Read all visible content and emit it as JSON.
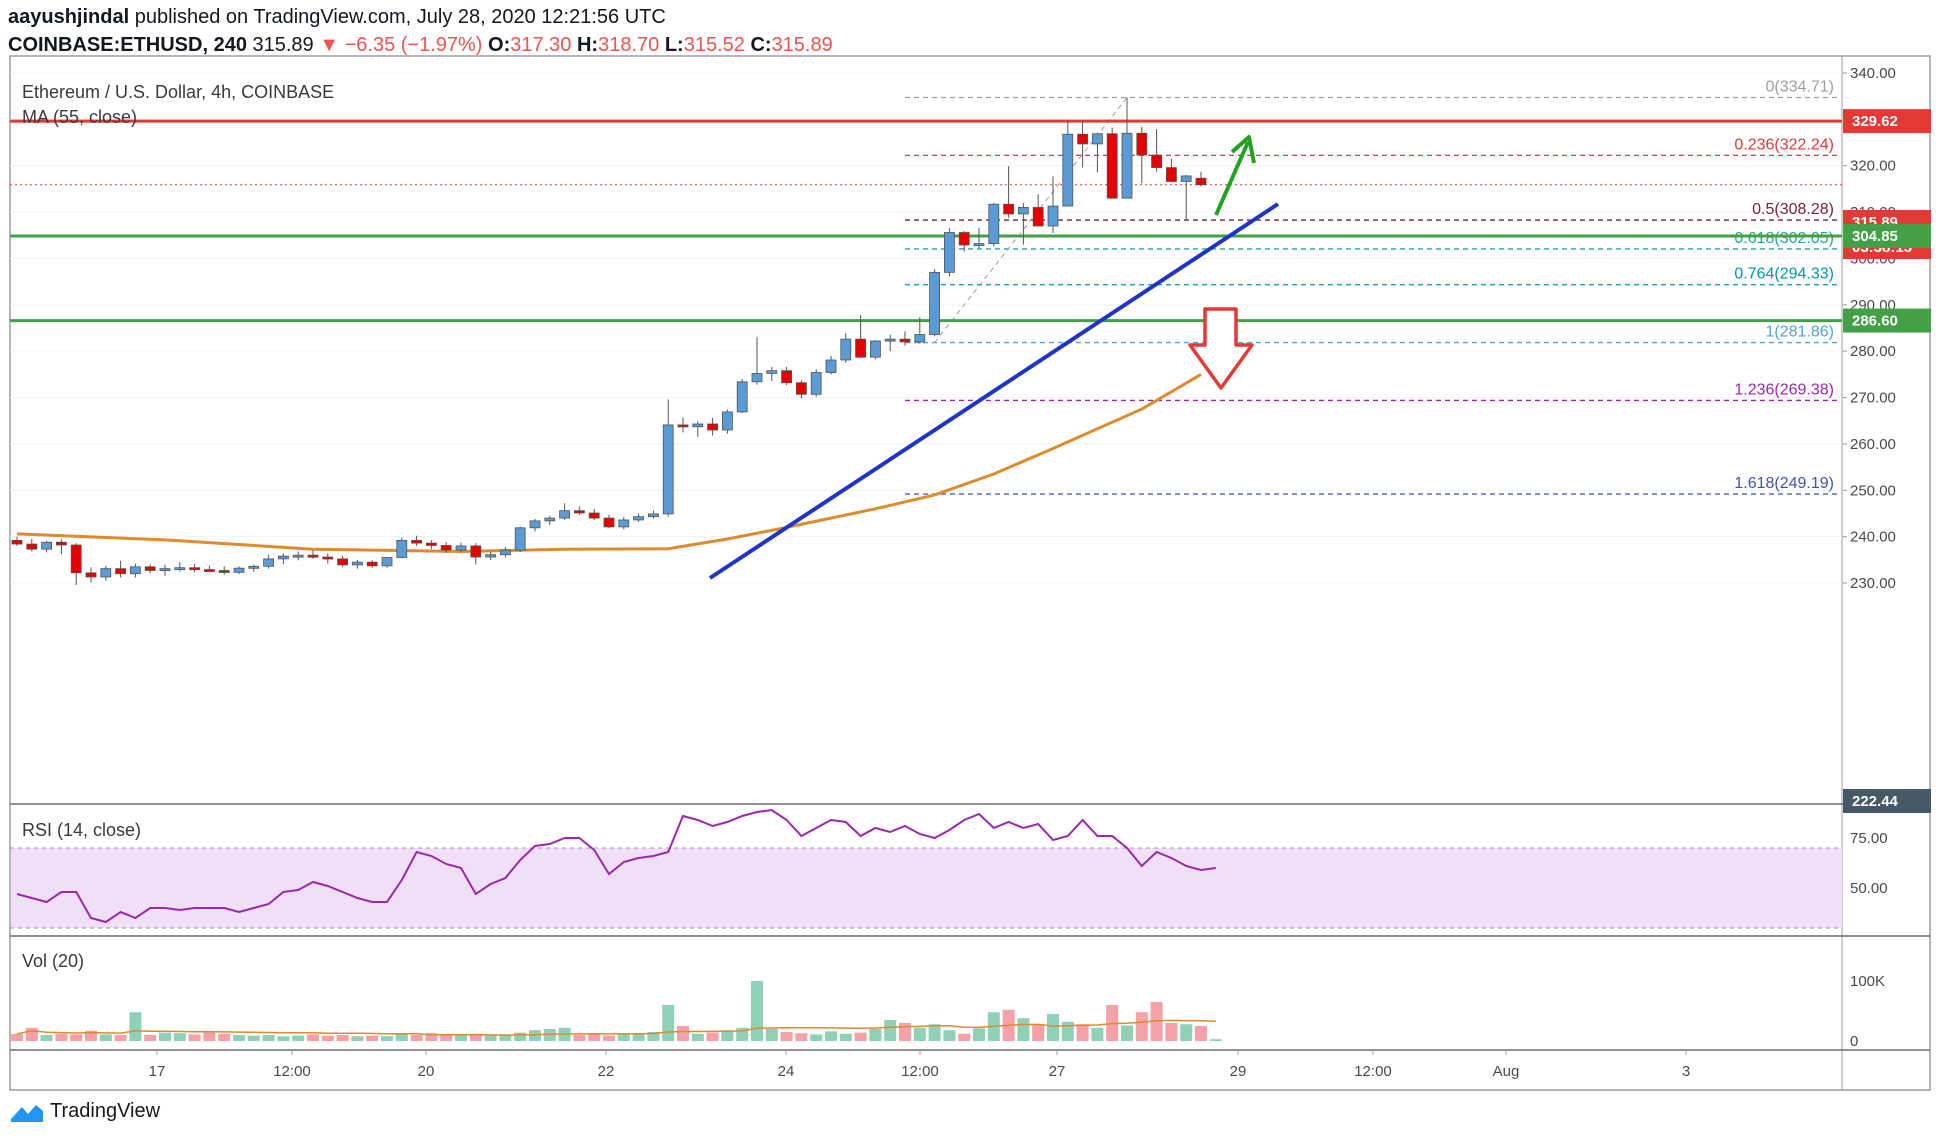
{
  "header": {
    "author": "aayushjindal",
    "published": "published on TradingView.com, July 28, 2020 12:21:56 UTC",
    "symbol": "COINBASE:ETHUSD, 240",
    "last": "315.89",
    "change": "−6.35 (−1.97%)",
    "o_label": "O:",
    "o": "317.30",
    "h_label": "H:",
    "h": "318.70",
    "l_label": "L:",
    "l": "315.52",
    "c_label": "C:",
    "c": "315.89"
  },
  "main_pane": {
    "title": "Ethereum / U.S. Dollar, 4h, COINBASE",
    "indicator": "MA (55, close)"
  },
  "rsi_pane": {
    "title": "RSI (14, close)",
    "ticks": [
      "75.00",
      "50.00"
    ]
  },
  "vol_pane": {
    "title": "Vol (20)",
    "ticks": [
      "100K",
      "0"
    ]
  },
  "price_axis": {
    "ticks": [
      "340.00",
      "320.00",
      "310.00",
      "300.00",
      "290.00",
      "280.00",
      "270.00",
      "260.00",
      "250.00",
      "240.00",
      "230.00"
    ]
  },
  "price_tags": [
    {
      "text": "329.62",
      "color": "#e53935"
    },
    {
      "text": "315.89",
      "color": "#e53935"
    },
    {
      "text": "03:38:13",
      "color": "#e53935"
    },
    {
      "text": "304.85",
      "color": "#43a047"
    },
    {
      "text": "286.60",
      "color": "#43a047"
    },
    {
      "text": "222.44",
      "color": "#455a64"
    }
  ],
  "fib_levels": [
    {
      "label": "0(334.71)",
      "color": "#9e9e9e"
    },
    {
      "label": "0.236(322.24)",
      "color": "#e53935"
    },
    {
      "label": "0.5(308.28)",
      "color": "#7b1f3a"
    },
    {
      "label": "0.618(302.05)",
      "color": "#26a69a"
    },
    {
      "label": "0.764(294.33)",
      "color": "#0097a7"
    },
    {
      "label": "1(281.86)",
      "color": "#4fa3e0"
    },
    {
      "label": "1.236(269.38)",
      "color": "#9c27b0"
    },
    {
      "label": "1.618(249.19)",
      "color": "#3f51b5"
    }
  ],
  "time_axis": {
    "labels": [
      "17",
      "12:00",
      "20",
      "22",
      "24",
      "12:00",
      "27",
      "29",
      "12:00",
      "Aug",
      "3"
    ]
  },
  "footer": {
    "brand": "TradingView"
  },
  "colors": {
    "up": "#5b9bd5",
    "down": "#e60000",
    "resistance": "#e53935",
    "support": "#43a047",
    "trendline": "#1f35c9",
    "ma": "#e08a2e",
    "rsi": "#9c27b0",
    "rsi_band": "#efe0f8",
    "vol_up": "#8fd1b7",
    "vol_down": "#f4a2a7",
    "arrow_up": "#21a321",
    "arrow_down": "#e53935"
  },
  "chart_data": {
    "type": "candlestick",
    "ylim": [
      226,
      342
    ],
    "horizontal_levels": [
      329.62,
      304.85,
      286.6
    ],
    "current_price": 315.89,
    "candles": [
      {
        "o": 239.2,
        "h": 240.0,
        "l": 238.0,
        "c": 238.4
      },
      {
        "o": 238.4,
        "h": 239.5,
        "l": 236.8,
        "c": 237.3
      },
      {
        "o": 237.3,
        "h": 239.1,
        "l": 236.6,
        "c": 238.8
      },
      {
        "o": 238.8,
        "h": 239.4,
        "l": 236.2,
        "c": 238.2
      },
      {
        "o": 238.2,
        "h": 238.6,
        "l": 229.6,
        "c": 232.2
      },
      {
        "o": 232.2,
        "h": 233.4,
        "l": 230.1,
        "c": 231.3
      },
      {
        "o": 231.3,
        "h": 233.7,
        "l": 230.5,
        "c": 233.1
      },
      {
        "o": 233.1,
        "h": 234.8,
        "l": 231.2,
        "c": 232.0
      },
      {
        "o": 232.0,
        "h": 234.2,
        "l": 231.2,
        "c": 233.5
      },
      {
        "o": 233.5,
        "h": 234.0,
        "l": 232.1,
        "c": 232.7
      },
      {
        "o": 232.7,
        "h": 233.9,
        "l": 231.6,
        "c": 233.1
      },
      {
        "o": 233.1,
        "h": 234.5,
        "l": 232.5,
        "c": 233.3
      },
      {
        "o": 233.3,
        "h": 234.1,
        "l": 232.3,
        "c": 232.9
      },
      {
        "o": 232.9,
        "h": 233.8,
        "l": 232.4,
        "c": 232.7
      },
      {
        "o": 232.7,
        "h": 233.6,
        "l": 231.8,
        "c": 232.3
      },
      {
        "o": 232.3,
        "h": 233.6,
        "l": 231.9,
        "c": 233.2
      },
      {
        "o": 233.2,
        "h": 234.0,
        "l": 232.4,
        "c": 233.6
      },
      {
        "o": 233.6,
        "h": 236.1,
        "l": 233.1,
        "c": 235.2
      },
      {
        "o": 235.2,
        "h": 236.4,
        "l": 234.1,
        "c": 235.8
      },
      {
        "o": 235.8,
        "h": 236.8,
        "l": 234.9,
        "c": 236.0
      },
      {
        "o": 236.0,
        "h": 237.0,
        "l": 235.2,
        "c": 235.6
      },
      {
        "o": 235.6,
        "h": 236.4,
        "l": 234.2,
        "c": 235.2
      },
      {
        "o": 235.2,
        "h": 235.9,
        "l": 233.4,
        "c": 233.9
      },
      {
        "o": 233.9,
        "h": 235.0,
        "l": 233.1,
        "c": 234.5
      },
      {
        "o": 234.5,
        "h": 234.9,
        "l": 233.3,
        "c": 233.7
      },
      {
        "o": 233.7,
        "h": 235.6,
        "l": 233.3,
        "c": 235.5
      },
      {
        "o": 235.5,
        "h": 239.8,
        "l": 235.3,
        "c": 239.2
      },
      {
        "o": 239.2,
        "h": 240.2,
        "l": 238.0,
        "c": 238.6
      },
      {
        "o": 238.6,
        "h": 239.2,
        "l": 237.3,
        "c": 238.1
      },
      {
        "o": 238.1,
        "h": 238.8,
        "l": 236.5,
        "c": 237.1
      },
      {
        "o": 237.1,
        "h": 238.7,
        "l": 236.7,
        "c": 238.0
      },
      {
        "o": 238.0,
        "h": 238.6,
        "l": 234.0,
        "c": 235.6
      },
      {
        "o": 235.6,
        "h": 236.7,
        "l": 235.0,
        "c": 236.1
      },
      {
        "o": 236.1,
        "h": 237.8,
        "l": 235.5,
        "c": 237.1
      },
      {
        "o": 237.1,
        "h": 242.2,
        "l": 236.7,
        "c": 241.9
      },
      {
        "o": 241.9,
        "h": 243.8,
        "l": 241.1,
        "c": 243.4
      },
      {
        "o": 243.4,
        "h": 244.5,
        "l": 242.5,
        "c": 244.0
      },
      {
        "o": 244.0,
        "h": 247.2,
        "l": 243.6,
        "c": 245.6
      },
      {
        "o": 245.6,
        "h": 246.5,
        "l": 244.7,
        "c": 245.1
      },
      {
        "o": 245.1,
        "h": 246.0,
        "l": 243.6,
        "c": 244.0
      },
      {
        "o": 244.0,
        "h": 244.7,
        "l": 241.9,
        "c": 242.1
      },
      {
        "o": 242.1,
        "h": 244.2,
        "l": 241.6,
        "c": 243.6
      },
      {
        "o": 243.6,
        "h": 245.0,
        "l": 243.2,
        "c": 244.3
      },
      {
        "o": 244.3,
        "h": 245.6,
        "l": 243.9,
        "c": 244.9
      },
      {
        "o": 244.9,
        "h": 269.6,
        "l": 244.3,
        "c": 264.1
      },
      {
        "o": 264.1,
        "h": 265.7,
        "l": 262.5,
        "c": 263.7
      },
      {
        "o": 263.7,
        "h": 264.9,
        "l": 261.5,
        "c": 264.3
      },
      {
        "o": 264.3,
        "h": 265.6,
        "l": 261.8,
        "c": 263.0
      },
      {
        "o": 263.0,
        "h": 267.4,
        "l": 262.2,
        "c": 266.9
      },
      {
        "o": 266.9,
        "h": 274.0,
        "l": 266.7,
        "c": 273.4
      },
      {
        "o": 273.4,
        "h": 283.0,
        "l": 272.8,
        "c": 275.2
      },
      {
        "o": 275.2,
        "h": 276.6,
        "l": 273.6,
        "c": 275.8
      },
      {
        "o": 275.8,
        "h": 276.6,
        "l": 272.7,
        "c": 273.2
      },
      {
        "o": 273.2,
        "h": 273.7,
        "l": 269.8,
        "c": 270.7
      },
      {
        "o": 270.7,
        "h": 276.1,
        "l": 270.2,
        "c": 275.4
      },
      {
        "o": 275.4,
        "h": 279.0,
        "l": 275.0,
        "c": 278.1
      },
      {
        "o": 278.1,
        "h": 283.9,
        "l": 277.5,
        "c": 282.6
      },
      {
        "o": 282.6,
        "h": 287.8,
        "l": 278.7,
        "c": 278.7
      },
      {
        "o": 278.7,
        "h": 282.4,
        "l": 278.2,
        "c": 282.2
      },
      {
        "o": 282.2,
        "h": 283.6,
        "l": 280.0,
        "c": 282.6
      },
      {
        "o": 282.6,
        "h": 284.3,
        "l": 281.2,
        "c": 282.0
      },
      {
        "o": 282.0,
        "h": 287.3,
        "l": 281.6,
        "c": 283.6
      },
      {
        "o": 283.6,
        "h": 297.7,
        "l": 283.2,
        "c": 297.0
      },
      {
        "o": 297.0,
        "h": 306.6,
        "l": 296.1,
        "c": 305.6
      },
      {
        "o": 305.6,
        "h": 305.9,
        "l": 301.5,
        "c": 302.9
      },
      {
        "o": 302.9,
        "h": 306.6,
        "l": 302.2,
        "c": 303.2
      },
      {
        "o": 303.2,
        "h": 312.0,
        "l": 302.6,
        "c": 311.7
      },
      {
        "o": 311.7,
        "h": 319.9,
        "l": 308.8,
        "c": 309.6
      },
      {
        "o": 309.6,
        "h": 312.0,
        "l": 303.0,
        "c": 311.0
      },
      {
        "o": 311.0,
        "h": 313.9,
        "l": 307.7,
        "c": 307.0
      },
      {
        "o": 307.0,
        "h": 317.7,
        "l": 305.5,
        "c": 311.3
      },
      {
        "o": 311.3,
        "h": 329.7,
        "l": 311.3,
        "c": 326.8
      },
      {
        "o": 326.8,
        "h": 329.7,
        "l": 319.6,
        "c": 324.7
      },
      {
        "o": 324.7,
        "h": 327.1,
        "l": 318.6,
        "c": 326.9
      },
      {
        "o": 326.9,
        "h": 328.2,
        "l": 313.0,
        "c": 313.0
      },
      {
        "o": 313.0,
        "h": 334.7,
        "l": 313.0,
        "c": 327.0
      },
      {
        "o": 327.0,
        "h": 328.4,
        "l": 316.2,
        "c": 322.3
      },
      {
        "o": 322.3,
        "h": 327.9,
        "l": 318.7,
        "c": 319.6
      },
      {
        "o": 319.6,
        "h": 321.5,
        "l": 316.4,
        "c": 316.6
      },
      {
        "o": 316.6,
        "h": 318.0,
        "l": 308.3,
        "c": 317.8
      },
      {
        "o": 317.3,
        "h": 318.7,
        "l": 315.52,
        "c": 315.89
      }
    ],
    "ma55": [
      [
        0,
        240.6
      ],
      [
        10,
        239.3
      ],
      [
        20,
        237.3
      ],
      [
        30,
        236.8
      ],
      [
        37,
        237.3
      ],
      [
        44,
        237.4
      ],
      [
        48,
        239.5
      ],
      [
        52,
        242.0
      ],
      [
        58,
        246.0
      ],
      [
        62,
        249.0
      ],
      [
        66,
        253.5
      ],
      [
        70,
        259.0
      ],
      [
        76,
        267.5
      ],
      [
        80,
        275.0
      ]
    ],
    "rsi": [
      47,
      45,
      43,
      48,
      48,
      35,
      33,
      38,
      35,
      40,
      40,
      39,
      40,
      40,
      40,
      38,
      40,
      42,
      48,
      49,
      53,
      51,
      48,
      45,
      43,
      43,
      54,
      68,
      66,
      62,
      60,
      47,
      52,
      55,
      64,
      71,
      72,
      75,
      75,
      69,
      57,
      63,
      65,
      66,
      68,
      86,
      84,
      81,
      83,
      86,
      88,
      89,
      84,
      76,
      80,
      84,
      83,
      76,
      80,
      78,
      81,
      77,
      75,
      79,
      84,
      87,
      80,
      83,
      80,
      82,
      74,
      76,
      84,
      76,
      76,
      70,
      61,
      68,
      65,
      61,
      59,
      60
    ]
  }
}
